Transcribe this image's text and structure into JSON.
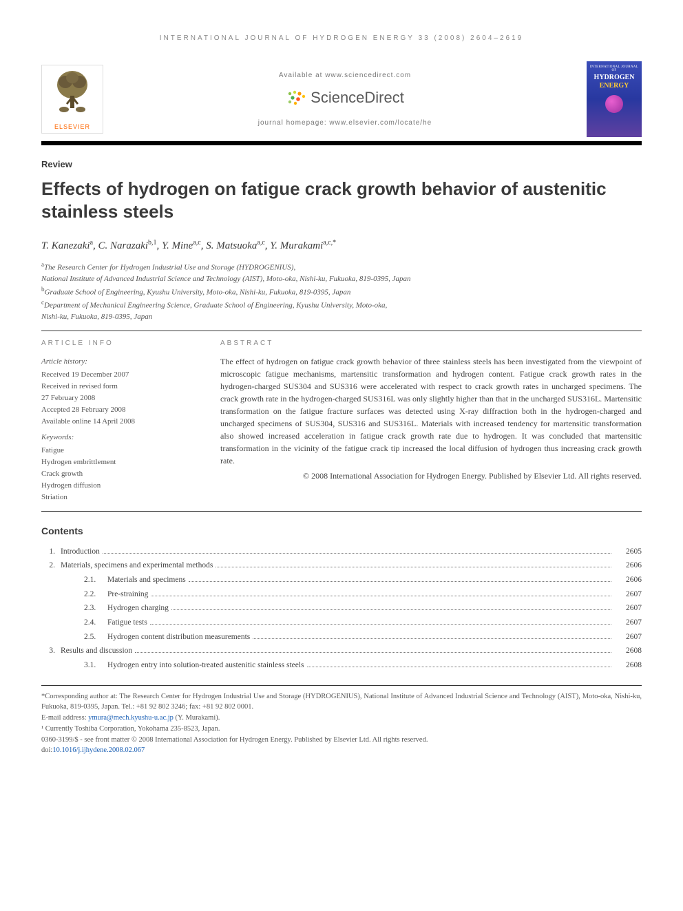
{
  "running_header": "INTERNATIONAL JOURNAL OF HYDROGEN ENERGY 33 (2008) 2604–2619",
  "masthead": {
    "elsevier_label": "ELSEVIER",
    "available_at": "Available at www.sciencedirect.com",
    "sciencedirect": "ScienceDirect",
    "journal_homepage": "journal homepage: www.elsevier.com/locate/he",
    "cover_line1": "INTERNATIONAL JOURNAL OF",
    "cover_line2": "HYDROGEN",
    "cover_line3": "ENERGY"
  },
  "article_type": "Review",
  "title": "Effects of hydrogen on fatigue crack growth behavior of austenitic stainless steels",
  "authors_html": "T. Kanezaki<sup>a</sup>, C. Narazaki<sup>b,1</sup>, Y. Mine<sup>a,c</sup>, S. Matsuoka<sup>a,c</sup>, Y. Murakami<sup>a,c,*</sup>",
  "affiliations": [
    "<sup>a</sup>The Research Center for Hydrogen Industrial Use and Storage (HYDROGENIUS),",
    "National Institute of Advanced Industrial Science and Technology (AIST), Moto-oka, Nishi-ku, Fukuoka, 819-0395, Japan",
    "<sup>b</sup>Graduate School of Engineering, Kyushu University, Moto-oka, Nishi-ku, Fukuoka, 819-0395, Japan",
    "<sup>c</sup>Department of Mechanical Engineering Science, Graduate School of Engineering, Kyushu University, Moto-oka,",
    "Nishi-ku, Fukuoka, 819-0395, Japan"
  ],
  "article_info": {
    "heading": "ARTICLE INFO",
    "history_label": "Article history:",
    "history": [
      "Received 19 December 2007",
      "Received in revised form",
      "27 February 2008",
      "Accepted 28 February 2008",
      "Available online 14 April 2008"
    ],
    "keywords_label": "Keywords:",
    "keywords": [
      "Fatigue",
      "Hydrogen embrittlement",
      "Crack growth",
      "Hydrogen diffusion",
      "Striation"
    ]
  },
  "abstract": {
    "heading": "ABSTRACT",
    "body": "The effect of hydrogen on fatigue crack growth behavior of three stainless steels has been investigated from the viewpoint of microscopic fatigue mechanisms, martensitic transformation and hydrogen content. Fatigue crack growth rates in the hydrogen-charged SUS304 and SUS316 were accelerated with respect to crack growth rates in uncharged specimens. The crack growth rate in the hydrogen-charged SUS316L was only slightly higher than that in the uncharged SUS316L. Martensitic transformation on the fatigue fracture surfaces was detected using X-ray diffraction both in the hydrogen-charged and uncharged specimens of SUS304, SUS316 and SUS316L. Materials with increased tendency for martensitic transformation also showed increased acceleration in fatigue crack growth rate due to hydrogen. It was concluded that martensitic transformation in the vicinity of the fatigue crack tip increased the local diffusion of hydrogen thus increasing crack growth rate.",
    "copyright": "© 2008 International Association for Hydrogen Energy. Published by Elsevier Ltd. All rights reserved."
  },
  "contents_heading": "Contents",
  "toc": [
    {
      "num": "1.",
      "label": "Introduction",
      "page": "2605"
    },
    {
      "num": "2.",
      "label": "Materials, specimens and experimental methods",
      "page": "2606",
      "children": [
        {
          "num": "2.1.",
          "label": "Materials and specimens",
          "page": "2606"
        },
        {
          "num": "2.2.",
          "label": "Pre-straining",
          "page": "2607"
        },
        {
          "num": "2.3.",
          "label": "Hydrogen charging",
          "page": "2607"
        },
        {
          "num": "2.4.",
          "label": "Fatigue tests",
          "page": "2607"
        },
        {
          "num": "2.5.",
          "label": "Hydrogen content distribution measurements",
          "page": "2607"
        }
      ]
    },
    {
      "num": "3.",
      "label": "Results and discussion",
      "page": "2608",
      "children": [
        {
          "num": "3.1.",
          "label": "Hydrogen entry into solution-treated austenitic stainless steels",
          "page": "2608"
        }
      ]
    }
  ],
  "footnotes": {
    "corr": "*Corresponding author at: The Research Center for Hydrogen Industrial Use and Storage (HYDROGENIUS), National Institute of Advanced Industrial Science and Technology (AIST), Moto-oka, Nishi-ku, Fukuoka, 819-0395, Japan. Tel.: +81 92 802 3246; fax: +81 92 802 0001.",
    "email_label": "E-mail address: ",
    "email": "ymura@mech.kyushu-u.ac.jp",
    "email_author": " (Y. Murakami).",
    "note1": "¹ Currently Toshiba Corporation, Yokohama 235-8523, Japan.",
    "front_matter": "0360-3199/$ - see front matter © 2008 International Association for Hydrogen Energy. Published by Elsevier Ltd. All rights reserved.",
    "doi_label": "doi:",
    "doi": "10.1016/j.ijhydene.2008.02.067"
  },
  "colors": {
    "elsevier_orange": "#ff6600",
    "link_blue": "#1a5fb4",
    "heading_grey": "#3a3a3a",
    "rule_black": "#000000",
    "muted": "#888888"
  }
}
